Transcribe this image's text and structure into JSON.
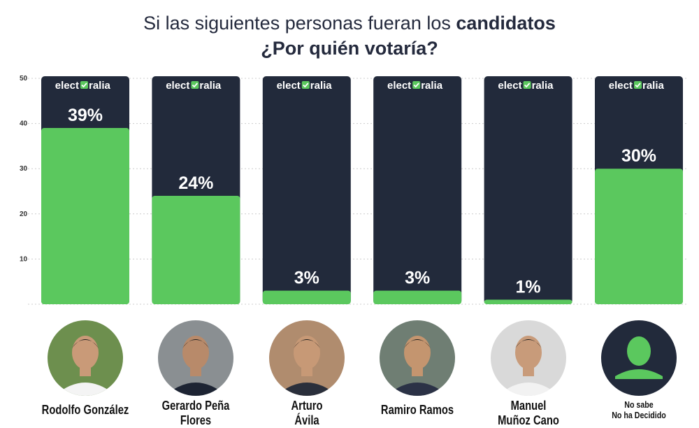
{
  "title": {
    "line1_prefix": "Si las siguientes personas fueran los ",
    "line1_bold": "candidatos",
    "line2": "¿Por quién votaría?"
  },
  "brand": {
    "left": "elect",
    "right": "ralia",
    "check_icon": "check-box-icon"
  },
  "colors": {
    "bar_fill": "#5bc85e",
    "bar_background": "#222a3b",
    "text_dark": "#242a3d",
    "grid": "#cccccc"
  },
  "chart_data": {
    "type": "bar",
    "categories": [
      "Rodolfo González",
      "Gerardo Peña",
      "Arturo",
      "Ramiro Ramos",
      "Manuel",
      "No sabe"
    ],
    "values": [
      39,
      24,
      3,
      3,
      1,
      30
    ],
    "value_labels": [
      "39%",
      "24%",
      "3%",
      "3%",
      "1%",
      "30%"
    ],
    "y_ticks": [
      10,
      20,
      30,
      40,
      50
    ],
    "ylim": [
      0,
      50
    ],
    "grid": true
  },
  "candidates": [
    {
      "name_line1": "Rodolfo González",
      "name_line2": "",
      "photo": "person-photo"
    },
    {
      "name_line1": "Gerardo Peña",
      "name_line2": "Flores",
      "photo": "person-photo"
    },
    {
      "name_line1": "Arturo",
      "name_line2": "Ávila",
      "photo": "person-photo"
    },
    {
      "name_line1": "Ramiro Ramos",
      "name_line2": "",
      "photo": "person-photo"
    },
    {
      "name_line1": "Manuel",
      "name_line2": "Muñoz Cano",
      "photo": "person-photo"
    },
    {
      "name_line1": "No sabe",
      "name_line2": "No ha Decidido",
      "photo": "silhouette-icon"
    }
  ]
}
